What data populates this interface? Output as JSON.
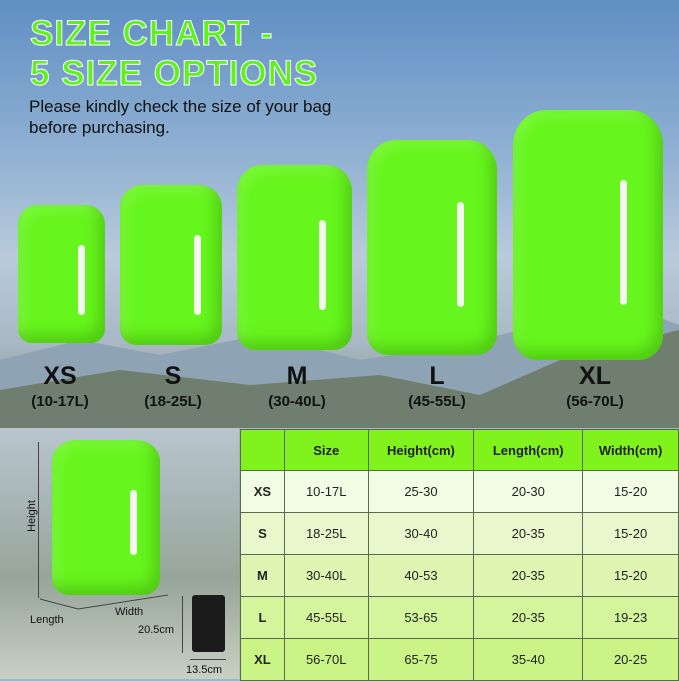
{
  "title": {
    "line1": "SIZE CHART -",
    "line2": "5 SIZE OPTIONS"
  },
  "subtitle": "Please kindly check the size of your bag before purchasing.",
  "sizes": [
    {
      "name": "XS",
      "range": "(10-17L)"
    },
    {
      "name": "S",
      "range": "(18-25L)"
    },
    {
      "name": "M",
      "range": "(30-40L)"
    },
    {
      "name": "L",
      "range": "(45-55L)"
    },
    {
      "name": "XL",
      "range": "(56-70L)"
    }
  ],
  "diagram": {
    "height": "Height",
    "length": "Length",
    "width": "Width",
    "pouch_height": "20.5cm",
    "pouch_width": "13.5cm"
  },
  "table": {
    "headers": [
      "",
      "Size",
      "Height(cm)",
      "Length(cm)",
      "Width(cm)"
    ],
    "rows": [
      [
        "XS",
        "10-17L",
        "25-30",
        "20-30",
        "15-20"
      ],
      [
        "S",
        "18-25L",
        "30-40",
        "20-35",
        "15-20"
      ],
      [
        "M",
        "30-40L",
        "40-53",
        "20-35",
        "15-20"
      ],
      [
        "L",
        "45-55L",
        "53-65",
        "20-35",
        "19-23"
      ],
      [
        "XL",
        "56-70L",
        "65-75",
        "35-40",
        "20-25"
      ]
    ]
  },
  "colors": {
    "accent": "#5ef11c",
    "header": "#80f21c"
  }
}
